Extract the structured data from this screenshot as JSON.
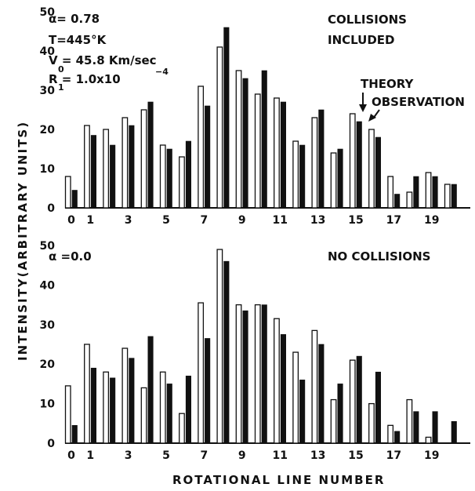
{
  "chart_data": [
    {
      "type": "bar",
      "panel": "top",
      "categories": [
        "0",
        "1",
        "2",
        "3",
        "4",
        "5",
        "6",
        "7",
        "8",
        "9",
        "10",
        "11",
        "12",
        "13",
        "14",
        "15",
        "16",
        "17",
        "18",
        "19",
        "20"
      ],
      "series": [
        {
          "name": "THEORY",
          "style": "open",
          "values": [
            8,
            21,
            20,
            23,
            25,
            16,
            13,
            31,
            41,
            35,
            29,
            28,
            17,
            23,
            14,
            24,
            20,
            8,
            4,
            9,
            6
          ]
        },
        {
          "name": "OBSERVATION",
          "style": "filled",
          "values": [
            4.5,
            18.5,
            16,
            21,
            27,
            15,
            17,
            26,
            46,
            33,
            35,
            27,
            16,
            25,
            15,
            22,
            18,
            3.5,
            8,
            8,
            6
          ]
        }
      ],
      "ylim": [
        0,
        50
      ],
      "yticks": [
        "0",
        "10",
        "20",
        "30",
        "40",
        "50"
      ],
      "xticks": [
        "0",
        "1",
        "3",
        "5",
        "7",
        "9",
        "11",
        "13",
        "15",
        "17",
        "19"
      ],
      "annotations": {
        "params": [
          "α= 0.78",
          "T=445°K",
          "V = 45.8 Km/sec",
          "R = 1.0x10"
        ],
        "velocity_sub": "0",
        "r_sub": "1",
        "r_sup": "−4",
        "condition_line1": "COLLISIONS",
        "condition_line2": "INCLUDED",
        "legend_theory": "THEORY",
        "legend_observation": "OBSERVATION"
      }
    },
    {
      "type": "bar",
      "panel": "bottom",
      "categories": [
        "0",
        "1",
        "2",
        "3",
        "4",
        "5",
        "6",
        "7",
        "8",
        "9",
        "10",
        "11",
        "12",
        "13",
        "14",
        "15",
        "16",
        "17",
        "18",
        "19",
        "20"
      ],
      "series": [
        {
          "name": "THEORY",
          "style": "open",
          "values": [
            14.5,
            25,
            18,
            24,
            14,
            18,
            7.5,
            35.5,
            49,
            35,
            35,
            31.5,
            23,
            28.5,
            11,
            21,
            10,
            4.5,
            11,
            1.5,
            0
          ]
        },
        {
          "name": "OBSERVATION",
          "style": "filled",
          "values": [
            4.5,
            19,
            16.5,
            21.5,
            27,
            15,
            17,
            26.5,
            46,
            33.5,
            35,
            27.5,
            16,
            25,
            15,
            22,
            18,
            3,
            8,
            8,
            5.5
          ]
        }
      ],
      "ylim": [
        0,
        50
      ],
      "yticks": [
        "0",
        "10",
        "20",
        "30",
        "40",
        "50"
      ],
      "xticks": [
        "0",
        "1",
        "3",
        "5",
        "7",
        "9",
        "11",
        "13",
        "15",
        "17",
        "19"
      ],
      "annotations": {
        "params": [
          "α =0.0"
        ],
        "condition_line1": "NO COLLISIONS"
      }
    }
  ],
  "ylabel": "INTENSITY(ARBITRARY UNITS)",
  "xlabel": "ROTATIONAL LINE NUMBER"
}
